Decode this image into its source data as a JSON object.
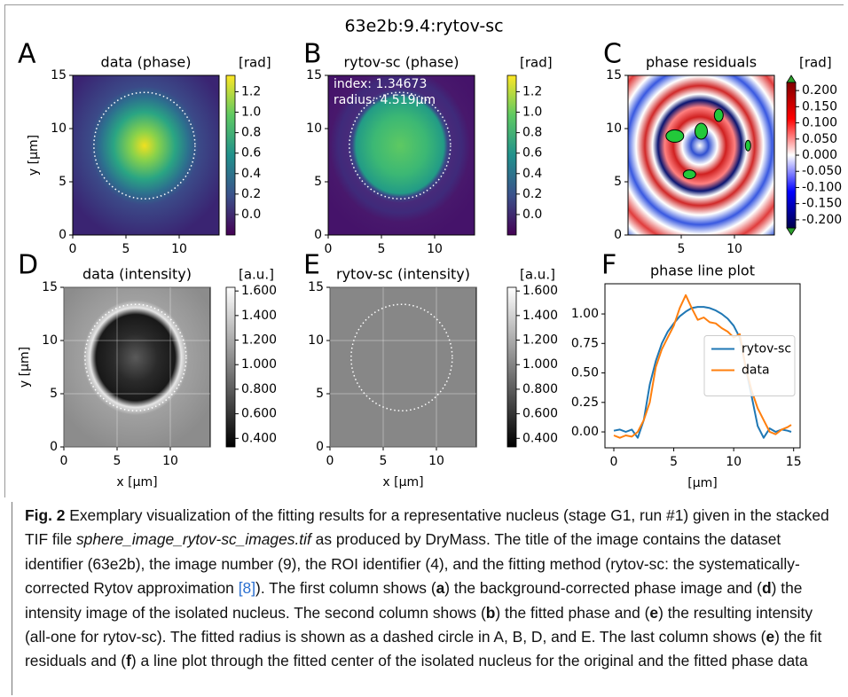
{
  "figure_title": "63e2b:9.4:rytov-sc",
  "chart_data": [
    {
      "type": "image",
      "panel": "A",
      "title": "data (phase)",
      "colorbar_label": "[rad]",
      "ylabel": "y [µm]",
      "xlim": [
        0,
        13.75
      ],
      "ylim": [
        0,
        15
      ],
      "xticks": [
        0,
        5,
        10
      ],
      "yticks": [
        0,
        5,
        10,
        15
      ],
      "clim": [
        -0.2,
        1.36
      ],
      "cticks": [
        {
          "value": 0,
          "label": "0.0"
        },
        0.2,
        0.4,
        0.6,
        0.8,
        {
          "value": 1,
          "label": "1.0"
        },
        1.2
      ],
      "colormap": "viridis"
    },
    {
      "type": "image",
      "panel": "B",
      "title": "rytov-sc (phase)",
      "colorbar_label": "[rad]",
      "annotations": [
        "index: 1.34673",
        "radius: 4.519µm"
      ],
      "xlim": [
        0,
        13.75
      ],
      "ylim": [
        0,
        15
      ],
      "xticks": [
        0,
        5,
        10
      ],
      "yticks": [
        0,
        5,
        10,
        15
      ],
      "clim": [
        -0.2,
        1.36
      ],
      "cticks": [
        {
          "value": 0,
          "label": "0.0"
        },
        0.2,
        0.4,
        0.6,
        0.8,
        {
          "value": 1,
          "label": "1.0"
        },
        1.2
      ],
      "colormap": "viridis"
    },
    {
      "type": "image",
      "panel": "C",
      "title": "phase residuals",
      "colorbar_label": "[rad]",
      "xlim": [
        0,
        13.75
      ],
      "ylim": [
        0,
        15
      ],
      "xticks": [
        5,
        10
      ],
      "yticks": [
        0,
        5,
        10,
        15
      ],
      "clim": [
        -0.225,
        0.225
      ],
      "cticks": [
        {
          "value": -0.2,
          "label": "-0.200"
        },
        {
          "value": -0.15,
          "label": "-0.150"
        },
        {
          "value": -0.1,
          "label": "-0.100"
        },
        {
          "value": -0.05,
          "label": "-0.050"
        },
        {
          "value": 0,
          "label": "0.000"
        },
        {
          "value": 0.05,
          "label": "0.050"
        },
        {
          "value": 0.1,
          "label": "0.100"
        },
        {
          "value": 0.15,
          "label": "0.150"
        },
        {
          "value": 0.2,
          "label": "0.200"
        }
      ],
      "colormap": "seismic"
    },
    {
      "type": "image",
      "panel": "D",
      "title": "data (intensity)",
      "colorbar_label": "[a.u.]",
      "xlabel": "x [µm]",
      "ylabel": "y [µm]",
      "xlim": [
        0,
        13.75
      ],
      "ylim": [
        0,
        15
      ],
      "xticks": [
        0,
        5,
        10
      ],
      "yticks": [
        0,
        5,
        10,
        15
      ],
      "grid": true,
      "clim": [
        0.33,
        1.63
      ],
      "cticks": [
        {
          "value": 0.4,
          "label": "0.400"
        },
        {
          "value": 0.6,
          "label": "0.600"
        },
        {
          "value": 0.8,
          "label": "0.800"
        },
        {
          "value": 1,
          "label": "1.000"
        },
        {
          "value": 1.2,
          "label": "1.200"
        },
        {
          "value": 1.4,
          "label": "1.400"
        },
        {
          "value": 1.6,
          "label": "1.600"
        }
      ],
      "colormap": "gray"
    },
    {
      "type": "image",
      "panel": "E",
      "title": "rytov-sc (intensity)",
      "colorbar_label": "[a.u.]",
      "xlabel": "x [µm]",
      "xlim": [
        0,
        13.75
      ],
      "ylim": [
        0,
        15
      ],
      "xticks": [
        0,
        5,
        10
      ],
      "yticks": [
        0,
        5,
        10,
        15
      ],
      "grid": true,
      "clim": [
        0.33,
        1.63
      ],
      "cticks": [
        {
          "value": 0.4,
          "label": "0.400"
        },
        {
          "value": 0.6,
          "label": "0.600"
        },
        {
          "value": 0.8,
          "label": "0.800"
        },
        {
          "value": 1,
          "label": "1.000"
        },
        {
          "value": 1.2,
          "label": "1.200"
        },
        {
          "value": 1.4,
          "label": "1.400"
        },
        {
          "value": 1.6,
          "label": "1.600"
        }
      ],
      "colormap": "gray"
    },
    {
      "type": "line",
      "panel": "F",
      "title": "phase line plot",
      "xlabel": "[µm]",
      "legend": "center right",
      "x": [
        0,
        0.5,
        1,
        1.5,
        2,
        2.5,
        3,
        3.5,
        4,
        4.5,
        5,
        5.5,
        6,
        6.5,
        7,
        7.5,
        8,
        8.5,
        9,
        9.5,
        10,
        10.5,
        11,
        11.5,
        12,
        12.5,
        13,
        13.5,
        14,
        14.5,
        14.8
      ],
      "series": [
        {
          "name": "rytov-sc",
          "color": "#1f77b4",
          "values": [
            0.01,
            0.02,
            0,
            0.02,
            -0.05,
            0.1,
            0.4,
            0.6,
            0.75,
            0.85,
            0.92,
            0.98,
            1.02,
            1.05,
            1.06,
            1.06,
            1.05,
            1.03,
            1.0,
            0.96,
            0.9,
            0.8,
            0.55,
            0.3,
            0.05,
            -0.05,
            0.03,
            0.0,
            0.02,
            0.01,
            0.0
          ]
        },
        {
          "name": "data",
          "color": "#ff7f0e",
          "values": [
            -0.03,
            -0.05,
            -0.03,
            -0.04,
            0.0,
            0.1,
            0.25,
            0.55,
            0.7,
            0.8,
            0.9,
            1.05,
            1.16,
            1.05,
            0.95,
            0.97,
            0.93,
            0.92,
            0.88,
            0.85,
            0.8,
            0.83,
            0.55,
            0.35,
            0.2,
            0.1,
            0.0,
            -0.02,
            0.02,
            0.04,
            0.06
          ]
        }
      ],
      "xlim": [
        -0.74,
        15.54
      ],
      "ylim": [
        -0.135,
        1.256
      ],
      "xticks": [
        0,
        5,
        10,
        15
      ],
      "yticks": [
        {
          "value": 0,
          "label": "0.00"
        },
        {
          "value": 0.25,
          "label": "0.25"
        },
        {
          "value": 0.5,
          "label": "0.50"
        },
        {
          "value": 0.75,
          "label": "0.75"
        },
        {
          "value": 1,
          "label": "1.00"
        }
      ]
    }
  ],
  "caption": [
    "Fig. 2",
    " Exemplary visualization of the fitting results for a representative nucleus (stage G1, run #1) given in the stacked TIF file ",
    "sphere_image_rytov-sc_images.tif",
    " as produced by DryMass. The title of the image contains the dataset identifier (63e2b), the image number (9), the ROI identifier (4), and the fitting method (rytov-sc: the systematically-corrected Rytov approximation ",
    "[8]",
    "). The first column shows (",
    "a",
    ") the background-corrected phase image and (",
    "d",
    ") the intensity image of the isolated nucleus. The second column shows (",
    "b",
    ") the fitted phase and (",
    "e",
    ") the resulting intensity (all-one for rytov-sc). The fitted radius is shown as a dashed circle in A, B, D, and E. The last column shows (",
    "e",
    ") the fit residuals and (",
    "f",
    ") a line plot through the fitted center of the isolated nucleus for the original and the fitted phase data"
  ]
}
